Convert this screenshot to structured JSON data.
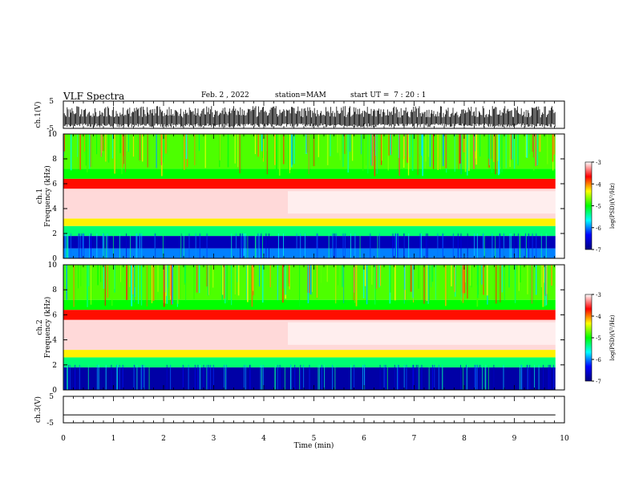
{
  "header": {
    "title": "VLF Spectra",
    "date": "Feb. 2 , 2022",
    "station": "station=MAM",
    "start": "start UT =  7 : 20 : 1"
  },
  "colors": {
    "scale": [
      "#000080",
      "#0000ff",
      "#00ffff",
      "#00ff00",
      "#ffff00",
      "#ff0000",
      "#ffffff"
    ]
  },
  "chart_data": [
    {
      "type": "line",
      "name": "ch.1 waveform",
      "ylabel": "ch.1(V)",
      "ylim": [
        -5,
        5
      ],
      "yticks": [
        5,
        -5
      ],
      "description_values": "dense waveform spikes between about -5 and 3 V",
      "typical_range": [
        -4,
        3
      ]
    },
    {
      "type": "heatmap",
      "ylabel": "ch.1\nFrequency (kHz)",
      "ylim": [
        0,
        10
      ],
      "yticks": [
        0,
        2,
        4,
        6,
        8,
        10
      ],
      "colorbar": {
        "label": "log(PSD)(V²/Hz)",
        "ticks": [
          -3,
          -4,
          -5,
          -6,
          -7
        ],
        "range": [
          -7,
          -3
        ]
      },
      "bands_khz": [
        {
          "from": 0,
          "to": 0.8,
          "level": -6.0
        },
        {
          "from": 0.8,
          "to": 1.8,
          "level": -6.7
        },
        {
          "from": 1.8,
          "to": 2.6,
          "level": -5.3
        },
        {
          "from": 2.6,
          "to": 3.2,
          "level": -4.3
        },
        {
          "from": 3.2,
          "to": 5.6,
          "level": -3.1
        },
        {
          "from": 5.6,
          "to": 6.4,
          "level": -3.7
        },
        {
          "from": 6.4,
          "to": 7.2,
          "level": -5.0
        },
        {
          "from": 7.2,
          "to": 10,
          "level": -4.8
        }
      ]
    },
    {
      "type": "heatmap",
      "ylabel": "ch.2\nFrequency (kHz)",
      "ylim": [
        0,
        10
      ],
      "yticks": [
        0,
        2,
        4,
        6,
        8,
        10
      ],
      "colorbar": {
        "label": "log(PSD)(V²/Hz)",
        "ticks": [
          -3,
          -4,
          -5,
          -6,
          -7
        ],
        "range": [
          -7,
          -3
        ]
      },
      "bands_khz": [
        {
          "from": 0,
          "to": 1.8,
          "level": -6.8
        },
        {
          "from": 1.8,
          "to": 2.6,
          "level": -5.3
        },
        {
          "from": 2.6,
          "to": 3.2,
          "level": -4.3
        },
        {
          "from": 3.2,
          "to": 5.6,
          "level": -3.1
        },
        {
          "from": 5.6,
          "to": 6.4,
          "level": -3.7
        },
        {
          "from": 6.4,
          "to": 7.2,
          "level": -5.0
        },
        {
          "from": 7.2,
          "to": 10,
          "level": -4.8
        }
      ]
    },
    {
      "type": "line",
      "name": "ch.3 waveform",
      "ylabel": "ch.3(V)",
      "ylim": [
        -5,
        5
      ],
      "yticks": [
        5,
        -5
      ],
      "value": -2
    }
  ],
  "xaxis": {
    "label": "Time (min)",
    "ticks": [
      0,
      1,
      2,
      3,
      4,
      5,
      6,
      7,
      8,
      9,
      10
    ],
    "xlim": [
      0,
      10
    ],
    "data_end": 9.82
  }
}
